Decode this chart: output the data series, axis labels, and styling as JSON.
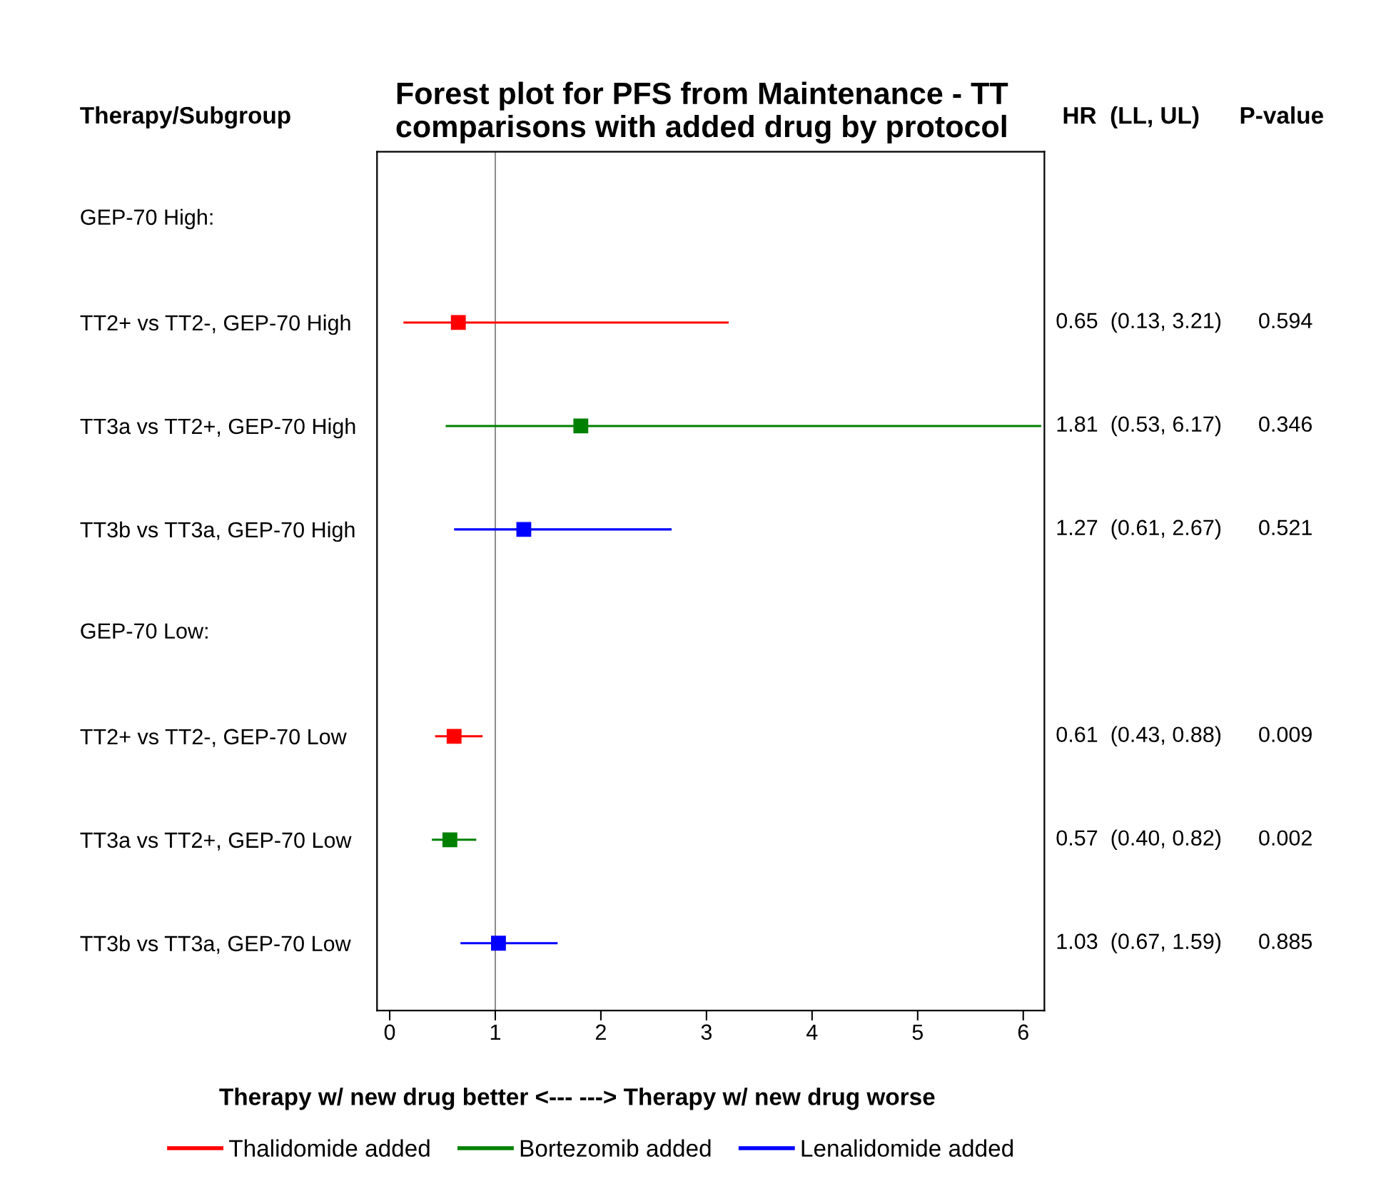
{
  "chart_data": {
    "type": "scatter",
    "orientation": "horizontal",
    "title": "Forest plot for PFS from Maintenance - TT\ncomparisons with added drug by protocol",
    "xlabel": "Therapy w/ new drug better <--- ---> Therapy w/ new drug worse",
    "categories": [
      null,
      "TT2+ vs TT2-, GEP-70 High",
      "TT3a vs TT2+, GEP-70 High",
      "TT3b vs TT3a, GEP-70 High",
      null,
      "TT2+ vs TT2-, GEP-70 Low",
      "TT3a vs TT2+, GEP-70 Low",
      "TT3b vs TT3a, GEP-70 Low"
    ],
    "series": [
      {
        "name": "Thalidomide added",
        "color": "#ff0000",
        "values": [
          null,
          0.65,
          null,
          null,
          null,
          0.61,
          null,
          null
        ],
        "errors": [
          null,
          [
            0.13,
            3.21
          ],
          null,
          null,
          null,
          [
            0.43,
            0.88
          ],
          null,
          null
        ]
      },
      {
        "name": "Bortezomib added",
        "color": "#008000",
        "values": [
          null,
          null,
          1.81,
          null,
          null,
          null,
          0.57,
          null
        ],
        "errors": [
          null,
          null,
          [
            0.53,
            6.17
          ],
          null,
          null,
          null,
          [
            0.4,
            0.82
          ],
          null
        ]
      },
      {
        "name": "Lenalidomide added",
        "color": "#0000ff",
        "values": [
          null,
          null,
          null,
          1.27,
          null,
          null,
          null,
          1.03
        ],
        "errors": [
          null,
          null,
          null,
          [
            0.61,
            2.67
          ],
          null,
          null,
          null,
          [
            0.67,
            1.59
          ]
        ]
      }
    ],
    "xlim": [
      -0.12,
      6.2
    ],
    "xticks": [
      0,
      1,
      2,
      3,
      4,
      5,
      6
    ],
    "ref_lines": [
      {
        "axis": "x",
        "value": 1,
        "color": "#808080"
      }
    ],
    "annotations": [
      "Therapy/Subgroup",
      "HR  (LL, UL)      P-value",
      "GEP-70 High:",
      "GEP-70 Low:",
      "0.65  (0.13, 3.21)      0.594",
      "1.81  (0.53, 6.17)      0.346",
      "1.27  (0.61, 2.67)      0.521",
      "0.61  (0.43, 0.88)      0.009",
      "0.57  (0.40, 0.82)      0.002",
      "1.03  (0.67, 1.59)      0.885"
    ],
    "marker": "square",
    "line_style": "solid",
    "grid": false,
    "legend": "bottom"
  }
}
